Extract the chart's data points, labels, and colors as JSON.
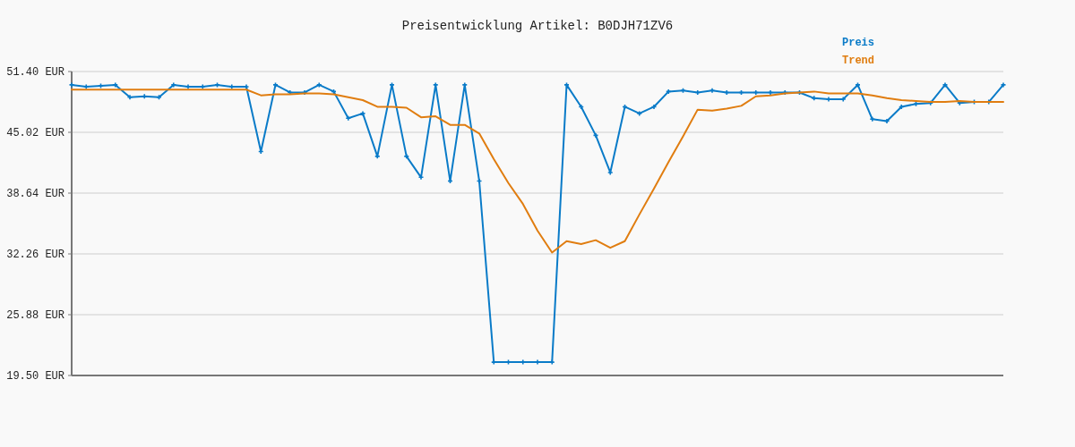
{
  "chart_data": {
    "type": "line",
    "title": "Preisentwicklung Artikel: B0DJH71ZV6",
    "categories": [
      null,
      null,
      null,
      null,
      null,
      null,
      null,
      null,
      null,
      null,
      null,
      null,
      null,
      null,
      null,
      null,
      null,
      null,
      null,
      null,
      null,
      null,
      null,
      null,
      null,
      null,
      null,
      null,
      null,
      null,
      null,
      null,
      null,
      null,
      null,
      null,
      null,
      null,
      null,
      null,
      null,
      null,
      null,
      null,
      null,
      null,
      null,
      null,
      null,
      null,
      null,
      null,
      null,
      null,
      null,
      null,
      null,
      null,
      null,
      null,
      null,
      null,
      null,
      null,
      null
    ],
    "series": [
      {
        "name": "Preis",
        "color": "#0a7bc8",
        "marker": "cross",
        "values": [
          50.0,
          49.8,
          49.9,
          50.0,
          48.7,
          48.8,
          48.7,
          50.0,
          49.8,
          49.8,
          50.0,
          49.8,
          49.8,
          43.0,
          50.0,
          49.2,
          49.2,
          50.0,
          49.3,
          46.5,
          47.0,
          42.5,
          50.0,
          42.5,
          40.3,
          50.0,
          39.9,
          50.0,
          39.9,
          20.9,
          20.9,
          20.9,
          20.9,
          20.9,
          50.0,
          47.7,
          44.7,
          40.8,
          47.7,
          47.0,
          47.7,
          49.3,
          49.4,
          49.2,
          49.4,
          49.2,
          49.2,
          49.2,
          49.2,
          49.2,
          49.2,
          48.6,
          48.5,
          48.5,
          50.0,
          46.4,
          46.2,
          47.7,
          48.0,
          48.1,
          50.0,
          48.1,
          48.2,
          48.2,
          50.0
        ]
      },
      {
        "name": "Trend",
        "color": "#e07d10",
        "marker": "none",
        "values": [
          49.5,
          49.5,
          49.5,
          49.5,
          49.5,
          49.5,
          49.5,
          49.5,
          49.5,
          49.5,
          49.5,
          49.5,
          49.5,
          48.9,
          49.0,
          49.0,
          49.1,
          49.1,
          49.0,
          48.7,
          48.4,
          47.7,
          47.7,
          47.6,
          46.6,
          46.7,
          45.8,
          45.8,
          44.9,
          42.2,
          39.7,
          37.5,
          34.7,
          32.4,
          33.6,
          33.3,
          33.7,
          32.9,
          33.6,
          36.4,
          39.1,
          41.9,
          44.6,
          47.4,
          47.3,
          47.5,
          47.8,
          48.8,
          48.9,
          49.1,
          49.2,
          49.3,
          49.1,
          49.1,
          49.1,
          48.9,
          48.6,
          48.4,
          48.3,
          48.2,
          48.2,
          48.3,
          48.2,
          48.2,
          48.2
        ]
      }
    ],
    "ylim": [
      19.5,
      51.4
    ],
    "yticks": [
      {
        "value": 19.5,
        "label": "19.50 EUR"
      },
      {
        "value": 25.88,
        "label": "25.88 EUR"
      },
      {
        "value": 32.26,
        "label": "32.26 EUR"
      },
      {
        "value": 38.64,
        "label": "38.64 EUR"
      },
      {
        "value": 45.02,
        "label": "45.02 EUR"
      },
      {
        "value": 51.4,
        "label": "51.40 EUR"
      }
    ],
    "grid": "y",
    "legend": "top right",
    "line_style": "solid"
  }
}
